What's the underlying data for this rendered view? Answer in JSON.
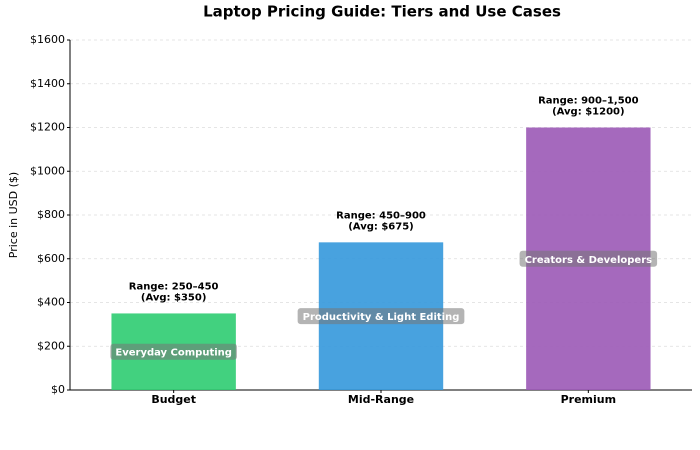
{
  "chart_data": {
    "type": "bar",
    "title": "Laptop Pricing Guide: Tiers and Use Cases",
    "y_label": "Price in USD ($)",
    "categories": [
      "Budget",
      "Mid-Range",
      "Premium"
    ],
    "values": [
      350,
      675,
      1200
    ],
    "value_labels": [
      "(Avg: $350)",
      "(Avg: $675)",
      "(Avg: $1200)"
    ],
    "range_labels": [
      "Range: 250–450",
      "Range: 450–900",
      "Range: 900–1,500"
    ],
    "use_cases": [
      "Everyday Computing",
      "Productivity & Light Editing",
      "Creators & Developers"
    ],
    "colors": [
      "#2ecc71",
      "#3498db",
      "#9b59b6"
    ],
    "ylim": [
      0,
      1600
    ],
    "yticks": [
      {
        "value": 0,
        "label": "$0"
      },
      {
        "value": 200,
        "label": "$200"
      },
      {
        "value": 400,
        "label": "$400"
      },
      {
        "value": 600,
        "label": "$600"
      },
      {
        "value": 800,
        "label": "$800"
      },
      {
        "value": 1000,
        "label": "$1000"
      },
      {
        "value": 1200,
        "label": "$1200"
      },
      {
        "value": 1400,
        "label": "$1400"
      },
      {
        "value": 1600,
        "label": "$1600"
      }
    ],
    "grid": true
  }
}
